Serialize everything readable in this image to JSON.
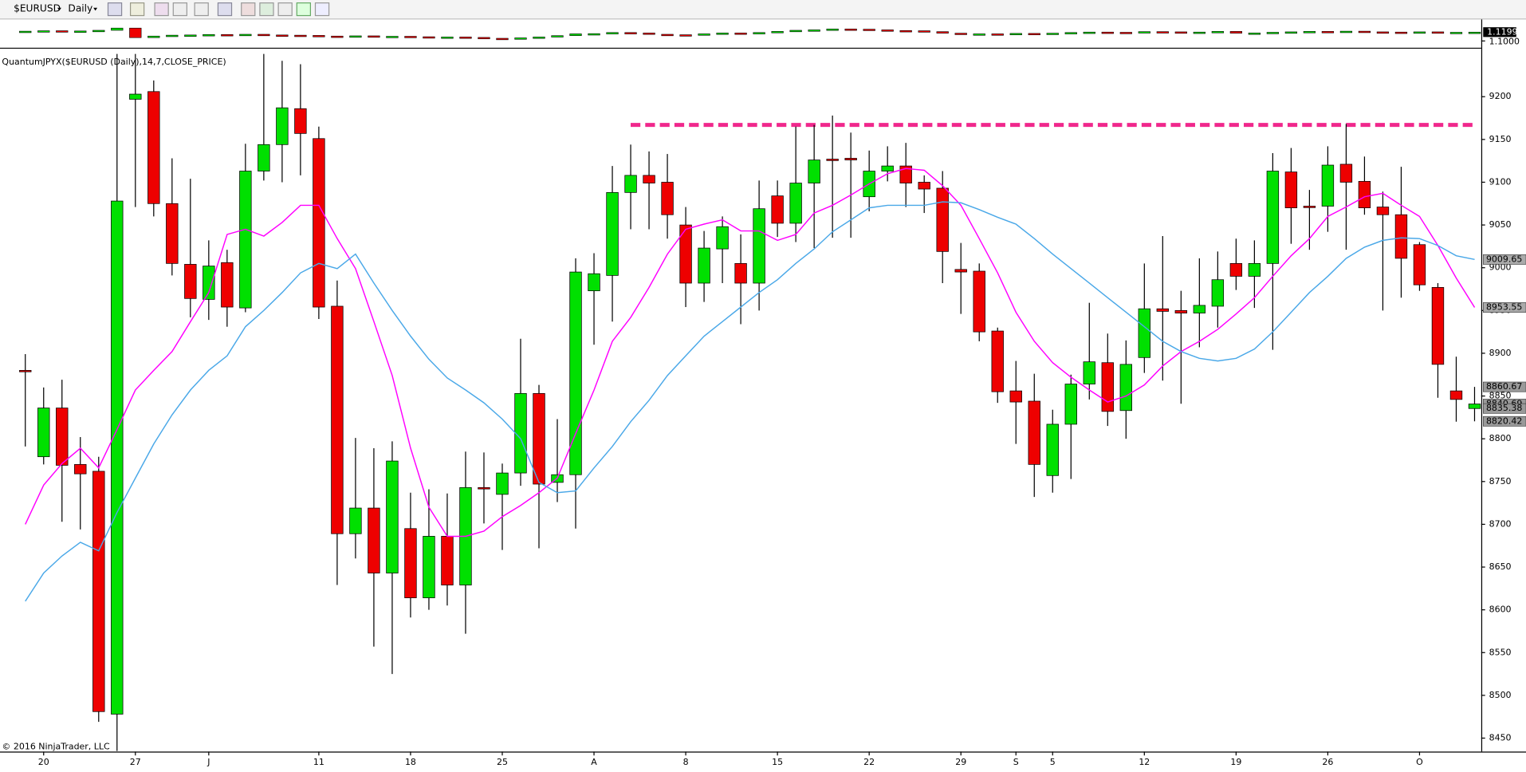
{
  "chart_data": {
    "type": "candlestick",
    "symbol": "$EURUSD",
    "interval": "Daily",
    "title": "QuantumJPYX($EURUSD (Daily),14,7,CLOSE_PRICE)",
    "copyright": "© 2016 NinjaTrader, LLC",
    "categories": [
      null,
      "20",
      null,
      null,
      null,
      null,
      "27",
      null,
      null,
      null,
      "J",
      null,
      null,
      null,
      null,
      null,
      "11",
      null,
      null,
      null,
      null,
      "18",
      null,
      null,
      null,
      null,
      "25",
      null,
      null,
      null,
      null,
      "A",
      null,
      null,
      null,
      null,
      "8",
      null,
      null,
      null,
      null,
      "15",
      null,
      null,
      null,
      null,
      "22",
      null,
      null,
      null,
      null,
      "29",
      null,
      null,
      "S",
      null,
      "5",
      null,
      null,
      null,
      null,
      "12",
      null,
      null,
      null,
      null,
      "19",
      null,
      null,
      null,
      null,
      "26",
      null,
      null,
      null,
      null,
      "O",
      null,
      null,
      null
    ],
    "open": [
      8880,
      8779,
      8836,
      8770,
      8762,
      8478,
      9197,
      9206,
      9075,
      9004,
      8963,
      9006,
      8953,
      9113,
      9144,
      9186,
      9151,
      8955,
      8689,
      8719,
      8643,
      8695,
      8614,
      8686,
      8629,
      8743,
      8735,
      8760,
      8853,
      8749,
      8758,
      8973,
      8991,
      9088,
      9108,
      9100,
      9050,
      8982,
      9022,
      9005,
      8982,
      9084,
      9052,
      9099,
      9127,
      9128,
      9083,
      9113,
      9119,
      9100,
      9093,
      8998,
      8996,
      8926,
      8856,
      8844,
      8757,
      8817,
      8864,
      8889,
      8833,
      8895,
      8952,
      8950,
      8947,
      8955,
      9005,
      8990,
      9005,
      9112,
      9072,
      9072,
      9121,
      9101,
      9071,
      9062,
      9027,
      8977,
      8856,
      8835.38
    ],
    "high": [
      8899,
      8860,
      8869,
      8802,
      8779,
      9250,
      9250,
      9219,
      9128,
      9104,
      9032,
      9021,
      9145,
      9250,
      9242,
      9238,
      9165,
      8985,
      8801,
      8789,
      8797,
      8737,
      8741,
      8736,
      8785,
      8784,
      8771,
      8917,
      8863,
      8823,
      9011,
      9017,
      9119,
      9144,
      9136,
      9133,
      9071,
      9043,
      9060,
      9039,
      9102,
      9102,
      9165,
      9167,
      9178,
      9158,
      9137,
      9142,
      9146,
      9108,
      9113,
      9029,
      9005,
      8930,
      8891,
      8876,
      8834,
      8875,
      8959,
      8923,
      8915,
      9005,
      9037,
      8973,
      9011,
      9019,
      9034,
      9032,
      9134,
      9140,
      9091,
      9142,
      9168,
      9130,
      9089,
      9118,
      9030,
      8982,
      8896,
      8860.67
    ],
    "low": [
      8791,
      8770,
      8703,
      8694,
      8469,
      8435,
      9071,
      9060,
      8991,
      8942,
      8939,
      8931,
      8948,
      9102,
      9100,
      9108,
      8940,
      8629,
      8660,
      8557,
      8525,
      8591,
      8600,
      8605,
      8572,
      8701,
      8670,
      8745,
      8672,
      8726,
      8695,
      8910,
      8937,
      9045,
      9045,
      9034,
      8954,
      8960,
      8982,
      8934,
      8950,
      9036,
      9030,
      9023,
      9035,
      9035,
      9066,
      9101,
      9071,
      9064,
      8982,
      8946,
      8914,
      8842,
      8794,
      8732,
      8737,
      8753,
      8846,
      8815,
      8800,
      8877,
      8868,
      8841,
      8907,
      8930,
      8974,
      8953,
      8904,
      9028,
      9021,
      9042,
      9021,
      9062,
      8950,
      8965,
      8973,
      8848,
      8820,
      8820.42
    ],
    "close": [
      8880,
      8836,
      8769,
      8759,
      8481,
      9078,
      9203,
      9075,
      9005,
      8964,
      9002,
      8954,
      9113,
      9144,
      9187,
      9157,
      8954,
      8689,
      8719,
      8643,
      8774,
      8614,
      8686,
      8629,
      8743,
      8743,
      8760,
      8853,
      8747,
      8758,
      8995,
      8993,
      9088,
      9108,
      9099,
      9062,
      8982,
      9023,
      9048,
      8982,
      9069,
      9052,
      9099,
      9126,
      9127,
      9126,
      9113,
      9119,
      9099,
      9092,
      9019,
      8995,
      8925,
      8855,
      8843,
      8770,
      8817,
      8864,
      8890,
      8832,
      8887,
      8952,
      8949,
      8947,
      8956,
      8986,
      8990,
      9005,
      9113,
      9070,
      9072,
      9120,
      9100,
      9070,
      9062,
      9011,
      8980,
      8887,
      8846,
      8840.69
    ],
    "up_color": "#00e000",
    "down_color": "#ee0000",
    "lines": [
      {
        "color": "#ff00ff",
        "values": [
          8700,
          8746,
          8771,
          8789,
          8766,
          8811,
          8857,
          8880,
          8902,
          8937,
          8971,
          9039,
          9045,
          9037,
          9053,
          9073,
          9073,
          9034,
          8999,
          8937,
          8874,
          8789,
          8720,
          8686,
          8686,
          8692,
          8709,
          8722,
          8737,
          8754,
          8806,
          8857,
          8914,
          8942,
          8977,
          9016,
          9045,
          9051,
          9056,
          9043,
          9043,
          9032,
          9039,
          9064,
          9073,
          9085,
          9098,
          9110,
          9116,
          9114,
          9096,
          9073,
          9034,
          8994,
          8948,
          8914,
          8889,
          8872,
          8857,
          8843,
          8850,
          8863,
          8885,
          8902,
          8914,
          8928,
          8946,
          8965,
          8990,
          9014,
          9034,
          9060,
          9071,
          9083,
          9087,
          9073,
          9060,
          9026,
          8988,
          8953.55
        ]
      },
      {
        "color": "#4aa8e8",
        "values": [
          8610,
          8643,
          8663,
          8679,
          8669,
          8714,
          8754,
          8794,
          8828,
          8857,
          8880,
          8897,
          8931,
          8950,
          8971,
          8994,
          9005,
          8999,
          9016,
          8982,
          8950,
          8920,
          8893,
          8871,
          8857,
          8842,
          8823,
          8800,
          8749,
          8737,
          8739,
          8766,
          8791,
          8820,
          8845,
          8874,
          8897,
          8920,
          8937,
          8954,
          8971,
          8986,
          9005,
          9022,
          9042,
          9056,
          9070,
          9073,
          9073,
          9073,
          9077,
          9076,
          9068,
          9059,
          9051,
          9034,
          9016,
          8999,
          8982,
          8965,
          8948,
          8931,
          8914,
          8902,
          8894,
          8891,
          8894,
          8905,
          8925,
          8948,
          8971,
          8990,
          9011,
          9024,
          9032,
          9035,
          9034,
          9026,
          9014,
          9009.65
        ]
      }
    ],
    "resistance": {
      "value": 9167,
      "color": "#f0288c"
    },
    "ylim": [
      8432,
      9255
    ],
    "yticks": [
      8450,
      8500,
      8550,
      8600,
      8650,
      8700,
      8750,
      8800,
      8850,
      8900,
      8950,
      9000,
      9050,
      9100,
      9150,
      9200
    ],
    "price_panel": {
      "close": [
        1.122,
        1.123,
        1.1215,
        1.1225,
        1.124,
        1.129,
        1.1075,
        1.111,
        1.113,
        1.1135,
        1.1145,
        1.114,
        1.115,
        1.1135,
        1.113,
        1.1125,
        1.111,
        1.1095,
        1.1115,
        1.11,
        1.1105,
        1.1095,
        1.108,
        1.109,
        1.108,
        1.106,
        1.104,
        1.107,
        1.109,
        1.112,
        1.116,
        1.1165,
        1.119,
        1.118,
        1.115,
        1.114,
        1.1135,
        1.116,
        1.118,
        1.117,
        1.119,
        1.1215,
        1.124,
        1.125,
        1.127,
        1.1265,
        1.125,
        1.1235,
        1.123,
        1.121,
        1.1175,
        1.115,
        1.116,
        1.115,
        1.117,
        1.116,
        1.1175,
        1.119,
        1.12,
        1.1195,
        1.1185,
        1.121,
        1.1205,
        1.118,
        1.12,
        1.1215,
        1.1175,
        1.118,
        1.1195,
        1.1205,
        1.1215,
        1.121,
        1.122,
        1.1205,
        1.12,
        1.1195,
        1.1205,
        1.119,
        1.1195,
        1.1199
      ],
      "ylim": [
        1.087,
        1.144
      ],
      "yticks": [
        {
          "value": 1.1,
          "label": "1.1000"
        }
      ]
    }
  }
}
